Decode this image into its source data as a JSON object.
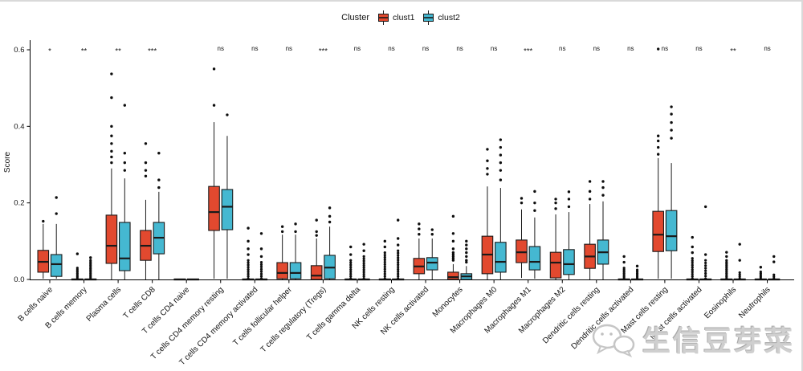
{
  "legend": {
    "title": "Cluster",
    "items": [
      {
        "label": "clust1",
        "color": "#E2492F"
      },
      {
        "label": "clust2",
        "color": "#45B8D1"
      }
    ]
  },
  "watermark": {
    "text": "生信豆芽菜",
    "icon": "wechat-icon"
  },
  "chart_data": {
    "type": "grouped_boxplot",
    "title": "",
    "ylabel": "Score",
    "ylim": [
      0,
      0.62
    ],
    "yticks": [
      0.0,
      0.2,
      0.4,
      0.6
    ],
    "grid": false,
    "legend_position": "top",
    "series_names": [
      "clust1",
      "clust2"
    ],
    "colors": [
      "#E2492F",
      "#45B8D1"
    ],
    "box_stroke": "#1a1a1a",
    "point_color": "#0d0d0d",
    "groups": [
      {
        "label": "B cells naive",
        "sig": "*",
        "clust1": {
          "type": "box",
          "lo": 0.002,
          "q1": 0.019,
          "med": 0.046,
          "q3": 0.076,
          "hi": 0.145,
          "out": [
            0.152
          ]
        },
        "clust2": {
          "type": "box",
          "lo": 0.002,
          "q1": 0.008,
          "med": 0.04,
          "q3": 0.065,
          "hi": 0.145,
          "out": [
            0.172,
            0.214
          ]
        }
      },
      {
        "label": "B cells memory",
        "sig": "**",
        "clust1": {
          "type": "flat",
          "stack": {
            "min": 0.002,
            "max": 0.03,
            "n": 7
          },
          "out": [
            0.067
          ]
        },
        "clust2": {
          "type": "flat",
          "stack": {
            "min": 0.002,
            "max": 0.05,
            "n": 12
          },
          "out": [
            0.057
          ]
        }
      },
      {
        "label": "Plasma cells",
        "sig": "**",
        "clust1": {
          "type": "box",
          "lo": 0,
          "q1": 0.042,
          "med": 0.088,
          "q3": 0.168,
          "hi": 0.29,
          "out": [
            0.305,
            0.32,
            0.335,
            0.355,
            0.375,
            0.4,
            0.475,
            0.537
          ]
        },
        "clust2": {
          "type": "box",
          "lo": 0,
          "q1": 0.023,
          "med": 0.055,
          "q3": 0.149,
          "hi": 0.264,
          "out": [
            0.285,
            0.305,
            0.33,
            0.455
          ]
        }
      },
      {
        "label": "T cells CD8",
        "sig": "***",
        "clust1": {
          "type": "box",
          "lo": 0,
          "q1": 0.05,
          "med": 0.088,
          "q3": 0.128,
          "hi": 0.208,
          "out": [
            0.27,
            0.285,
            0.305,
            0.355
          ]
        },
        "clust2": {
          "type": "box",
          "lo": 0,
          "q1": 0.067,
          "med": 0.109,
          "q3": 0.149,
          "hi": 0.229,
          "out": [
            0.24,
            0.26,
            0.33
          ]
        }
      },
      {
        "label": "T cells CD4 naive",
        "sig": "",
        "clust1": {
          "type": "flat"
        },
        "clust2": {
          "type": "flat"
        }
      },
      {
        "label": "T cells CD4 memory resting",
        "sig": "ns",
        "clust1": {
          "type": "box",
          "lo": 0.002,
          "q1": 0.128,
          "med": 0.176,
          "q3": 0.243,
          "hi": 0.411,
          "out": [
            0.455,
            0.55
          ]
        },
        "clust2": {
          "type": "box",
          "lo": 0.002,
          "q1": 0.13,
          "med": 0.19,
          "q3": 0.235,
          "hi": 0.375,
          "out": [
            0.43
          ]
        }
      },
      {
        "label": "T cells CD4 memory activated",
        "sig": "ns",
        "clust1": {
          "type": "flat",
          "stack": {
            "min": 0.002,
            "max": 0.05,
            "n": 9
          },
          "out": [
            0.065,
            0.08,
            0.1,
            0.134
          ]
        },
        "clust2": {
          "type": "flat",
          "stack": {
            "min": 0.002,
            "max": 0.045,
            "n": 8
          },
          "out": [
            0.06,
            0.08,
            0.12
          ]
        }
      },
      {
        "label": "T cells follicular helper",
        "sig": "ns",
        "clust1": {
          "type": "box",
          "lo": 0,
          "q1": 0.002,
          "med": 0.017,
          "q3": 0.044,
          "hi": 0.117,
          "out": [
            0.125,
            0.138
          ]
        },
        "clust2": {
          "type": "box",
          "lo": 0,
          "q1": 0.002,
          "med": 0.017,
          "q3": 0.044,
          "hi": 0.117,
          "out": [
            0.125,
            0.145
          ]
        }
      },
      {
        "label": "T cells regulatory (Tregs)",
        "sig": "***",
        "clust1": {
          "type": "box",
          "lo": 0,
          "q1": 0.0,
          "med": 0.01,
          "q3": 0.036,
          "hi": 0.107,
          "out": [
            0.115,
            0.125,
            0.155
          ]
        },
        "clust2": {
          "type": "box",
          "lo": 0,
          "q1": 0.002,
          "med": 0.031,
          "q3": 0.063,
          "hi": 0.138,
          "out": [
            0.15,
            0.165,
            0.187
          ]
        }
      },
      {
        "label": "T cells gamma delta",
        "sig": "ns",
        "clust1": {
          "type": "flat",
          "stack": {
            "min": 0.002,
            "max": 0.05,
            "n": 9
          },
          "out": [
            0.065,
            0.085
          ]
        },
        "clust2": {
          "type": "flat",
          "stack": {
            "min": 0.002,
            "max": 0.06,
            "n": 11
          },
          "out": [
            0.075,
            0.092
          ]
        }
      },
      {
        "label": "NK cells resting",
        "sig": "ns",
        "clust1": {
          "type": "flat",
          "stack": {
            "min": 0.002,
            "max": 0.07,
            "n": 12
          },
          "out": [
            0.085,
            0.1
          ]
        },
        "clust2": {
          "type": "flat",
          "stack": {
            "min": 0.002,
            "max": 0.075,
            "n": 13
          },
          "out": [
            0.09,
            0.107,
            0.155
          ]
        }
      },
      {
        "label": "NK cells activated",
        "sig": "ns",
        "clust1": {
          "type": "box",
          "lo": 0,
          "q1": 0.015,
          "med": 0.034,
          "q3": 0.055,
          "hi": 0.107,
          "out": [
            0.118,
            0.132,
            0.145
          ]
        },
        "clust2": {
          "type": "box",
          "lo": 0,
          "q1": 0.025,
          "med": 0.044,
          "q3": 0.057,
          "hi": 0.107,
          "out": [
            0.118,
            0.13
          ]
        }
      },
      {
        "label": "Monocytes",
        "sig": "ns",
        "clust1": {
          "type": "box",
          "lo": 0,
          "q1": 0.0,
          "med": 0.006,
          "q3": 0.019,
          "hi": 0.04,
          "out": [
            0.05,
            0.055,
            0.06,
            0.065,
            0.07,
            0.08,
            0.1,
            0.12,
            0.165
          ]
        },
        "clust2": {
          "type": "box",
          "lo": 0,
          "q1": 0.0,
          "med": 0.008,
          "q3": 0.015,
          "hi": 0.035,
          "out": [
            0.045,
            0.05,
            0.06,
            0.07,
            0.08,
            0.09,
            0.1
          ]
        }
      },
      {
        "label": "Macrophages M0",
        "sig": "ns",
        "clust1": {
          "type": "box",
          "lo": 0,
          "q1": 0.015,
          "med": 0.065,
          "q3": 0.113,
          "hi": 0.243,
          "out": [
            0.275,
            0.29,
            0.31,
            0.34
          ]
        },
        "clust2": {
          "type": "box",
          "lo": 0,
          "q1": 0.019,
          "med": 0.046,
          "q3": 0.097,
          "hi": 0.239,
          "out": [
            0.26,
            0.285,
            0.305,
            0.325,
            0.345,
            0.365
          ]
        }
      },
      {
        "label": "Macrophages M1",
        "sig": "***",
        "clust1": {
          "type": "box",
          "lo": 0.004,
          "q1": 0.044,
          "med": 0.071,
          "q3": 0.103,
          "hi": 0.183,
          "out": [
            0.2,
            0.212
          ]
        },
        "clust2": {
          "type": "box",
          "lo": 0.002,
          "q1": 0.025,
          "med": 0.046,
          "q3": 0.086,
          "hi": 0.162,
          "out": [
            0.18,
            0.2,
            0.23
          ]
        }
      },
      {
        "label": "Macrophages M2",
        "sig": "ns",
        "clust1": {
          "type": "box",
          "lo": 0,
          "q1": 0.004,
          "med": 0.044,
          "q3": 0.071,
          "hi": 0.17,
          "out": [
            0.185,
            0.2,
            0.21
          ]
        },
        "clust2": {
          "type": "box",
          "lo": 0,
          "q1": 0.013,
          "med": 0.04,
          "q3": 0.078,
          "hi": 0.176,
          "out": [
            0.19,
            0.21,
            0.229
          ]
        }
      },
      {
        "label": "Dendritic cells resting",
        "sig": "ns",
        "clust1": {
          "type": "box",
          "lo": 0,
          "q1": 0.029,
          "med": 0.06,
          "q3": 0.092,
          "hi": 0.197,
          "out": [
            0.21,
            0.23,
            0.256
          ]
        },
        "clust2": {
          "type": "box",
          "lo": 0,
          "q1": 0.04,
          "med": 0.071,
          "q3": 0.103,
          "hi": 0.204,
          "out": [
            0.22,
            0.24,
            0.256
          ]
        }
      },
      {
        "label": "Dendritic cells activated",
        "sig": "ns",
        "clust1": {
          "type": "flat",
          "stack": {
            "min": 0.002,
            "max": 0.03,
            "n": 7
          },
          "out": [
            0.045,
            0.06
          ]
        },
        "clust2": {
          "type": "flat",
          "stack": {
            "min": 0.002,
            "max": 0.025,
            "n": 6
          },
          "out": [
            0.035
          ]
        }
      },
      {
        "label": "Mast cells resting",
        "sig": "ns",
        "clust1": {
          "type": "box",
          "lo": 0.002,
          "q1": 0.073,
          "med": 0.117,
          "q3": 0.178,
          "hi": 0.317,
          "out": [
            0.327,
            0.345,
            0.362,
            0.375,
            0.602
          ]
        },
        "clust2": {
          "type": "box",
          "lo": 0.002,
          "q1": 0.075,
          "med": 0.113,
          "q3": 0.18,
          "hi": 0.304,
          "out": [
            0.369,
            0.39,
            0.41,
            0.432,
            0.451
          ]
        }
      },
      {
        "label": "Mast cells activated",
        "sig": "ns",
        "clust1": {
          "type": "flat",
          "stack": {
            "min": 0.002,
            "max": 0.055,
            "n": 10
          },
          "out": [
            0.07,
            0.085,
            0.11
          ]
        },
        "clust2": {
          "type": "flat",
          "stack": {
            "min": 0.002,
            "max": 0.05,
            "n": 8
          },
          "out": [
            0.065,
            0.19
          ]
        }
      },
      {
        "label": "Eosinophils",
        "sig": "**",
        "clust1": {
          "type": "flat",
          "stack": {
            "min": 0.002,
            "max": 0.05,
            "n": 11
          },
          "out": [
            0.06,
            0.071
          ]
        },
        "clust2": {
          "type": "flat",
          "stack": {
            "min": 0.002,
            "max": 0.018,
            "n": 4
          },
          "out": [
            0.05,
            0.092
          ]
        }
      },
      {
        "label": "Neutrophils",
        "sig": "ns",
        "clust1": {
          "type": "flat",
          "stack": {
            "min": 0.002,
            "max": 0.02,
            "n": 5
          },
          "out": [
            0.032
          ]
        },
        "clust2": {
          "type": "flat",
          "stack": {
            "min": 0.002,
            "max": 0.012,
            "n": 3
          },
          "out": [
            0.046,
            0.06
          ]
        }
      }
    ]
  }
}
